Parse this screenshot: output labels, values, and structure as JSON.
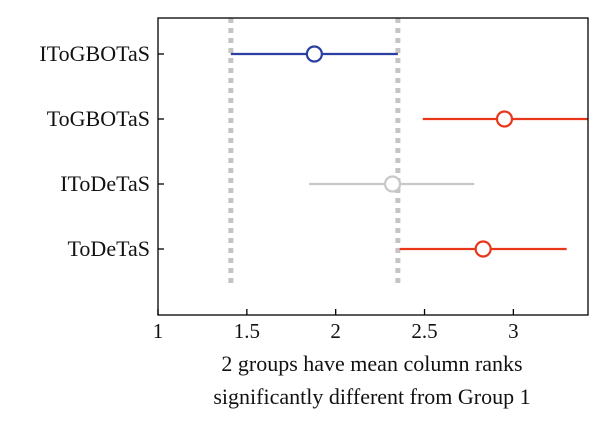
{
  "chart_data": {
    "type": "multiple-comparison",
    "title": "",
    "xlabel_lines": [
      "2 groups have mean column ranks",
      "significantly different from Group 1"
    ],
    "ylabel": "",
    "xlim": [
      1,
      3.42
    ],
    "xticks": [
      1,
      1.5,
      2,
      2.5,
      3
    ],
    "xtick_labels": [
      "1",
      "1.5",
      "2",
      "2.5",
      "3"
    ],
    "reference_lines": [
      1.41,
      2.35
    ],
    "grid": false,
    "groups": [
      {
        "label": "IToGBOTaS",
        "mean": 1.88,
        "lower": 1.41,
        "upper": 2.35,
        "color": "#2a3fa0"
      },
      {
        "label": "ToGBOTaS",
        "mean": 2.95,
        "lower": 2.49,
        "upper": 3.42,
        "color": "#e8361b"
      },
      {
        "label": "IToDeTaS",
        "mean": 2.32,
        "lower": 1.85,
        "upper": 2.78,
        "color": "#c8c8c8"
      },
      {
        "label": "ToDeTaS",
        "mean": 2.83,
        "lower": 2.36,
        "upper": 3.3,
        "color": "#e8361b"
      }
    ]
  }
}
